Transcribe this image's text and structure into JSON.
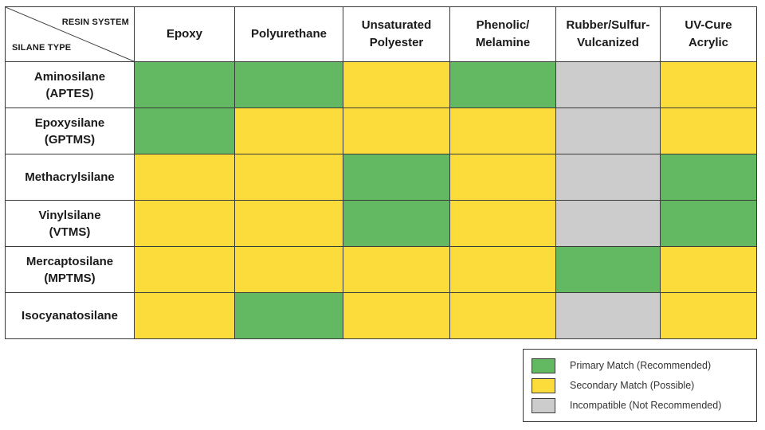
{
  "corner": {
    "top_label": "RESIN SYSTEM",
    "bottom_label": "SILANE TYPE"
  },
  "columns": [
    {
      "line1": "Epoxy",
      "line2": ""
    },
    {
      "line1": "Polyurethane",
      "line2": ""
    },
    {
      "line1": "Unsaturated",
      "line2": "Polyester"
    },
    {
      "line1": "Phenolic/",
      "line2": "Melamine"
    },
    {
      "line1": "Rubber/Sulfur-",
      "line2": "Vulcanized"
    },
    {
      "line1": "UV-Cure",
      "line2": "Acrylic"
    }
  ],
  "rows": [
    {
      "line1": "Aminosilane",
      "line2": "(APTES)",
      "cells": [
        "primary",
        "primary",
        "secondary",
        "primary",
        "incompatible",
        "secondary"
      ]
    },
    {
      "line1": "Epoxysilane",
      "line2": "(GPTMS)",
      "cells": [
        "primary",
        "secondary",
        "secondary",
        "secondary",
        "incompatible",
        "secondary"
      ]
    },
    {
      "line1": "Methacrylsilane",
      "line2": "",
      "cells": [
        "secondary",
        "secondary",
        "primary",
        "secondary",
        "incompatible",
        "primary"
      ]
    },
    {
      "line1": "Vinylsilane",
      "line2": "(VTMS)",
      "cells": [
        "secondary",
        "secondary",
        "primary",
        "secondary",
        "incompatible",
        "primary"
      ]
    },
    {
      "line1": "Mercaptosilane",
      "line2": "(MPTMS)",
      "cells": [
        "secondary",
        "secondary",
        "secondary",
        "secondary",
        "primary",
        "secondary"
      ]
    },
    {
      "line1": "Isocyanatosilane",
      "line2": "",
      "cells": [
        "secondary",
        "primary",
        "secondary",
        "secondary",
        "incompatible",
        "secondary"
      ]
    }
  ],
  "legend": {
    "primary": {
      "label": "Primary Match (Recommended)",
      "color": "#63b862"
    },
    "secondary": {
      "label": "Secondary Match (Possible)",
      "color": "#fcdc3a"
    },
    "incompatible": {
      "label": "Incompatible (Not Recommended)",
      "color": "#cccccc"
    }
  }
}
